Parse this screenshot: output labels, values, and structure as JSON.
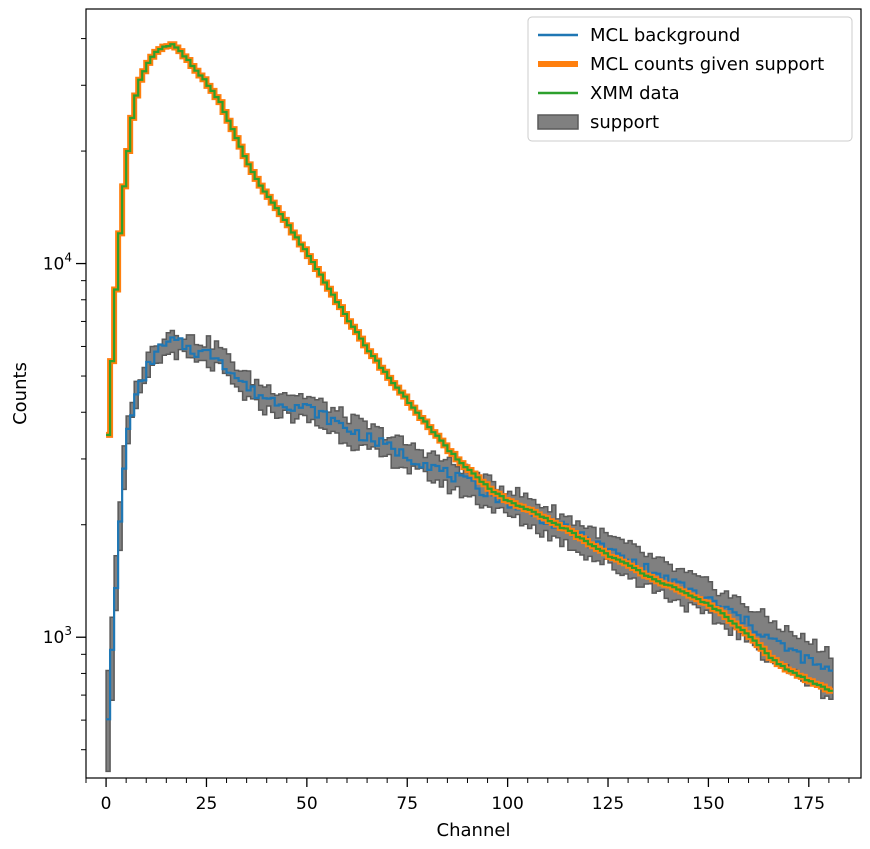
{
  "chart_data": {
    "type": "line",
    "title": "",
    "xlabel": "Channel",
    "ylabel": "Counts",
    "xlim": [
      -5,
      188
    ],
    "ylim": [
      420,
      48000
    ],
    "yscale": "log",
    "xticks": [
      0,
      25,
      50,
      75,
      100,
      125,
      150,
      175
    ],
    "xtick_labels": [
      "0",
      "25",
      "50",
      "75",
      "100",
      "125",
      "150",
      "175"
    ],
    "yticks_major": [
      1000,
      10000
    ],
    "ytick_labels": [
      {
        "base": "10",
        "exp": "3"
      },
      {
        "base": "10",
        "exp": "4"
      }
    ],
    "grid": false,
    "legend_position": "upper-right",
    "legend": [
      {
        "label": "MCL background",
        "style": "line",
        "color": "#1f77b4"
      },
      {
        "label": "MCL counts given support",
        "style": "thick-line",
        "color": "#ff7f0e"
      },
      {
        "label": "XMM data",
        "style": "line",
        "color": "#2ca02c"
      },
      {
        "label": "support",
        "style": "patch",
        "color": "#808080"
      }
    ],
    "series": [
      {
        "name": "XMM data",
        "color": "#2ca02c",
        "x": [
          0,
          1,
          2,
          3,
          4,
          5,
          6,
          7,
          8,
          10,
          12,
          14,
          16,
          18,
          20,
          22,
          25,
          28,
          30,
          33,
          36,
          40,
          45,
          50,
          55,
          60,
          65,
          70,
          75,
          80,
          85,
          90,
          95,
          100,
          105,
          110,
          115,
          120,
          125,
          130,
          135,
          140,
          145,
          150,
          155,
          160,
          165,
          170,
          175,
          180
        ],
        "y": [
          3500,
          5500,
          8500,
          12000,
          16000,
          20000,
          24500,
          28000,
          31000,
          34500,
          36800,
          37900,
          38500,
          37000,
          35000,
          33000,
          30000,
          27000,
          24000,
          20500,
          17500,
          15000,
          12600,
          10500,
          8600,
          7000,
          5850,
          4950,
          4250,
          3650,
          3150,
          2800,
          2500,
          2300,
          2180,
          2050,
          1920,
          1780,
          1650,
          1550,
          1450,
          1370,
          1290,
          1220,
          1110,
          1000,
          880,
          810,
          760,
          720
        ]
      },
      {
        "name": "MCL counts given support",
        "color": "#ff7f0e",
        "x": [
          0,
          1,
          2,
          3,
          4,
          5,
          6,
          7,
          8,
          10,
          12,
          14,
          16,
          18,
          20,
          22,
          25,
          28,
          30,
          33,
          36,
          40,
          45,
          50,
          55,
          60,
          65,
          70,
          75,
          80,
          85,
          90,
          95,
          100,
          105,
          110,
          115,
          120,
          125,
          130,
          135,
          140,
          145,
          150,
          155,
          160,
          165,
          170,
          175,
          180
        ],
        "y": [
          3500,
          5500,
          8500,
          12000,
          16000,
          20000,
          24500,
          28000,
          31000,
          34500,
          36800,
          37900,
          38500,
          37000,
          35000,
          33000,
          30000,
          27000,
          24000,
          20500,
          17500,
          15000,
          12600,
          10500,
          8600,
          7000,
          5850,
          4950,
          4250,
          3650,
          3150,
          2800,
          2500,
          2300,
          2180,
          2050,
          1920,
          1780,
          1650,
          1550,
          1450,
          1370,
          1290,
          1220,
          1110,
          1000,
          880,
          810,
          760,
          720
        ]
      },
      {
        "name": "MCL background",
        "color": "#1f77b4",
        "x": [
          0,
          1,
          2,
          3,
          4,
          5,
          6,
          8,
          10,
          12,
          14,
          16,
          18,
          20,
          22,
          25,
          28,
          30,
          33,
          36,
          40,
          45,
          50,
          55,
          60,
          65,
          70,
          75,
          80,
          85,
          90,
          95,
          100,
          105,
          110,
          115,
          120,
          125,
          130,
          135,
          140,
          145,
          150,
          155,
          160,
          165,
          170,
          175,
          180
        ],
        "y": [
          620,
          900,
          1350,
          2000,
          2850,
          3550,
          4050,
          4700,
          5300,
          5800,
          6000,
          6200,
          6100,
          5950,
          5800,
          5750,
          5600,
          5200,
          4850,
          4550,
          4350,
          4200,
          4100,
          3850,
          3600,
          3400,
          3230,
          3030,
          2900,
          2720,
          2580,
          2420,
          2300,
          2170,
          2040,
          1920,
          1800,
          1700,
          1600,
          1500,
          1410,
          1330,
          1250,
          1170,
          1080,
          990,
          920,
          860,
          800
        ]
      }
    ],
    "support_band": {
      "name": "support",
      "color": "#808080",
      "x": [
        0,
        1,
        2,
        3,
        4,
        5,
        6,
        8,
        10,
        12,
        14,
        16,
        18,
        20,
        22,
        25,
        28,
        30,
        33,
        36,
        40,
        45,
        50,
        55,
        60,
        65,
        70,
        75,
        80,
        85,
        90,
        95,
        100,
        105,
        110,
        115,
        120,
        125,
        130,
        135,
        140,
        145,
        150,
        155,
        160,
        165,
        170,
        175,
        180
      ],
      "lower": [
        450,
        700,
        1150,
        1750,
        2550,
        3250,
        3750,
        4350,
        4950,
        5400,
        5600,
        5800,
        5700,
        5550,
        5400,
        5350,
        5200,
        4850,
        4500,
        4220,
        4040,
        3900,
        3800,
        3570,
        3330,
        3140,
        2990,
        2800,
        2680,
        2510,
        2380,
        2230,
        2110,
        1990,
        1870,
        1760,
        1640,
        1550,
        1450,
        1360,
        1280,
        1200,
        1120,
        1050,
        960,
        870,
        810,
        750,
        690
      ],
      "upper": [
        820,
        1150,
        1600,
        2280,
        3150,
        3850,
        4380,
        5060,
        5680,
        6200,
        6420,
        6650,
        6540,
        6380,
        6220,
        6160,
        6010,
        5580,
        5200,
        4880,
        4670,
        4510,
        4400,
        4130,
        3870,
        3660,
        3470,
        3260,
        3120,
        2930,
        2780,
        2610,
        2490,
        2350,
        2210,
        2080,
        1960,
        1850,
        1750,
        1640,
        1540,
        1460,
        1380,
        1290,
        1200,
        1110,
        1030,
        970,
        910
      ]
    }
  }
}
